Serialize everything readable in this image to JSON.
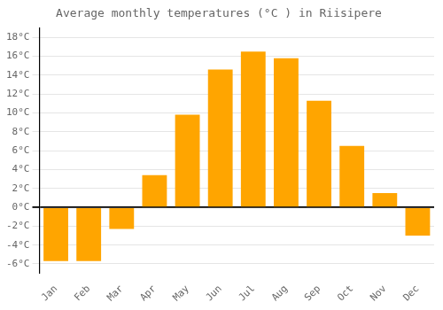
{
  "chart_data": {
    "type": "bar",
    "title": "Average monthly temperatures (°C ) in Riisipere",
    "categories": [
      "Jan",
      "Feb",
      "Mar",
      "Apr",
      "May",
      "Jun",
      "Jul",
      "Aug",
      "Sep",
      "Oct",
      "Nov",
      "Dec"
    ],
    "values": [
      -5.7,
      -5.7,
      -2.3,
      3.4,
      9.8,
      14.6,
      16.5,
      15.8,
      11.3,
      6.5,
      1.5,
      -3.0
    ],
    "color": "#FFA500",
    "ylim": [
      -7,
      19
    ],
    "yticks": [
      {
        "value": -6,
        "label": "-6°C"
      },
      {
        "value": -4,
        "label": "-4°C"
      },
      {
        "value": -2,
        "label": "-2°C"
      },
      {
        "value": 0,
        "label": "0°C"
      },
      {
        "value": 2,
        "label": "2°C"
      },
      {
        "value": 4,
        "label": "4°C"
      },
      {
        "value": 6,
        "label": "6°C"
      },
      {
        "value": 8,
        "label": "8°C"
      },
      {
        "value": 10,
        "label": "10°C"
      },
      {
        "value": 12,
        "label": "12°C"
      },
      {
        "value": 14,
        "label": "14°C"
      },
      {
        "value": 16,
        "label": "16°C"
      },
      {
        "value": 18,
        "label": "18°C"
      }
    ],
    "grid": true
  }
}
